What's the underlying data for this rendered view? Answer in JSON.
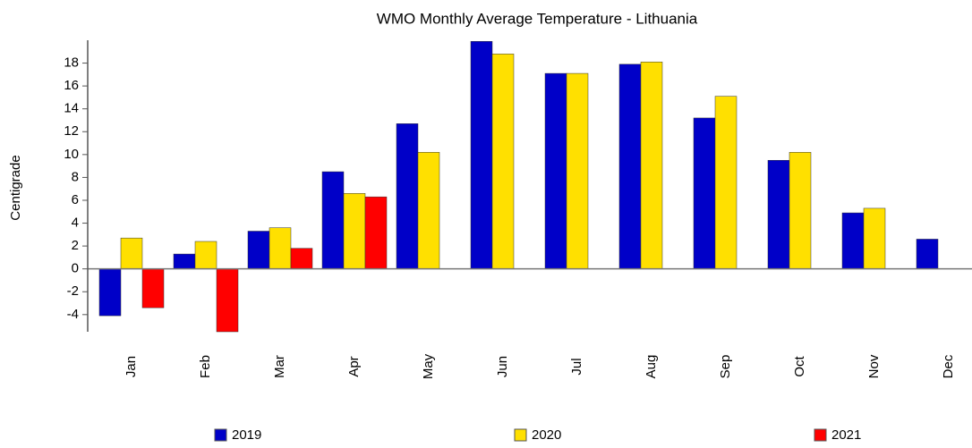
{
  "chart_data": {
    "type": "bar",
    "title": "WMO Monthly Average Temperature - Lithuania",
    "y_label": "Centigrade",
    "categories": [
      "Jan",
      "Feb",
      "Mar",
      "Apr",
      "May",
      "Jun",
      "Jul",
      "Aug",
      "Sep",
      "Oct",
      "Nov",
      "Dec"
    ],
    "series": [
      {
        "name": "2019",
        "color": "#0000c8",
        "values": [
          -4.1,
          1.3,
          3.3,
          8.5,
          12.7,
          19.9,
          17.1,
          17.9,
          13.2,
          9.5,
          4.9,
          2.6
        ]
      },
      {
        "name": "2020",
        "color": "#ffe000",
        "values": [
          2.7,
          2.4,
          3.6,
          6.6,
          10.2,
          18.8,
          17.1,
          18.1,
          15.1,
          10.2,
          5.3,
          null
        ]
      },
      {
        "name": "2021",
        "color": "#ff0000",
        "values": [
          -3.4,
          -5.5,
          1.8,
          6.3,
          null,
          null,
          null,
          null,
          null,
          null,
          null,
          null
        ]
      }
    ],
    "ylim": [
      -5.5,
      20
    ],
    "yticks": [
      -4,
      -2,
      0,
      2,
      4,
      6,
      8,
      10,
      12,
      14,
      16,
      18
    ],
    "legend": "bottom"
  }
}
